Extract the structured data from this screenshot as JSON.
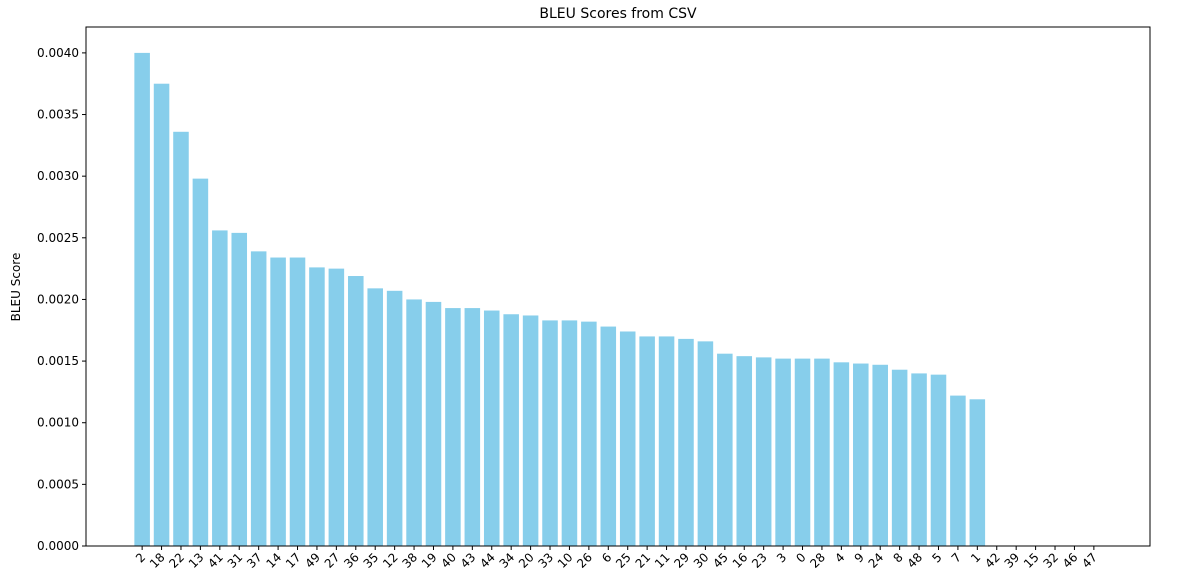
{
  "chart_data": {
    "type": "bar",
    "title": "BLEU Scores from CSV",
    "y_label": "BLEU Score",
    "categories": [
      "2",
      "18",
      "22",
      "13",
      "41",
      "31",
      "37",
      "14",
      "17",
      "49",
      "27",
      "36",
      "35",
      "12",
      "38",
      "19",
      "40",
      "43",
      "44",
      "34",
      "20",
      "33",
      "10",
      "26",
      "6",
      "25",
      "21",
      "11",
      "29",
      "30",
      "45",
      "16",
      "23",
      "3",
      "0",
      "28",
      "4",
      "9",
      "24",
      "8",
      "48",
      "5",
      "7",
      "1",
      "42",
      "39",
      "15",
      "32",
      "46",
      "47"
    ],
    "values": [
      0.004,
      0.00375,
      0.00336,
      0.00298,
      0.00256,
      0.00254,
      0.00239,
      0.00234,
      0.00234,
      0.00226,
      0.00225,
      0.00219,
      0.00209,
      0.00207,
      0.002,
      0.00198,
      0.00193,
      0.00193,
      0.00191,
      0.00188,
      0.00187,
      0.00183,
      0.00183,
      0.00182,
      0.00178,
      0.00174,
      0.0017,
      0.0017,
      0.00168,
      0.00166,
      0.00156,
      0.00154,
      0.00153,
      0.00152,
      0.00152,
      0.00152,
      0.00149,
      0.00148,
      0.00147,
      0.00143,
      0.0014,
      0.00139,
      0.00122,
      0.00119,
      0,
      0,
      0,
      0,
      0,
      0
    ],
    "color": "#87ceeb",
    "ylim": [
      0,
      0.00421
    ],
    "yticks": [
      {
        "value": 0,
        "label": "0.0000"
      },
      {
        "value": 0.0005,
        "label": "0.0005"
      },
      {
        "value": 0.001,
        "label": "0.0010"
      },
      {
        "value": 0.0015,
        "label": "0.0015"
      },
      {
        "value": 0.002,
        "label": "0.0020"
      },
      {
        "value": 0.0025,
        "label": "0.0025"
      },
      {
        "value": 0.003,
        "label": "0.0030"
      },
      {
        "value": 0.0035,
        "label": "0.0035"
      },
      {
        "value": 0.004,
        "label": "0.0040"
      }
    ],
    "grid": false
  }
}
